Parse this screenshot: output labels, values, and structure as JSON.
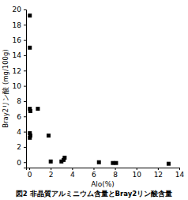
{
  "chart_data": {
    "type": "scatter",
    "x_label": "Alo(%)",
    "y_label": "Bray2リン酸 (mg/100g)",
    "caption": "図2 非晶質アルミニウム含量とBray2リン酸含量",
    "x": [
      0.05,
      0.05,
      0.05,
      0.1,
      0.8,
      0.05,
      0.05,
      0.1,
      1.8,
      2.0,
      3.0,
      3.3,
      3.2,
      6.5,
      7.8,
      8.1,
      13.0
    ],
    "y": [
      19.2,
      15.0,
      7.0,
      6.7,
      7.0,
      3.8,
      3.2,
      3.5,
      3.5,
      0.1,
      0.1,
      0.6,
      0.3,
      0.0,
      -0.1,
      -0.1,
      -0.2
    ],
    "xlim": [
      -0.3,
      14
    ],
    "ylim": [
      -0.7,
      20
    ],
    "xticks": [
      0,
      2,
      4,
      6,
      8,
      10,
      12,
      14
    ],
    "yticks": [
      0,
      2,
      4,
      6,
      8,
      10,
      12,
      14,
      16,
      18,
      20
    ],
    "marker": "square",
    "color": "#000000",
    "grid": false
  }
}
